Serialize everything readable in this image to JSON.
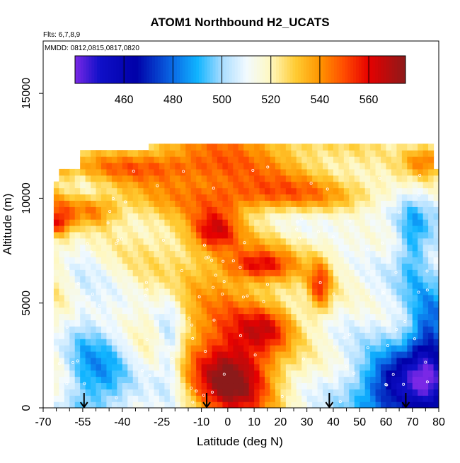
{
  "chart_data": {
    "type": "heatmap",
    "title": "ATOM1 Northbound H2_UCATS",
    "subtitle_lines": [
      "Flts: 6,7,8,9",
      "MMDD: 0812,0815,0817,0820"
    ],
    "xlabel": "Latitude (deg N)",
    "ylabel": "Altitude (m)",
    "xlim": [
      -70,
      80
    ],
    "ylim": [
      0,
      17500
    ],
    "x_ticks": [
      -70,
      -55,
      -40,
      -25,
      -10,
      0,
      10,
      20,
      30,
      40,
      50,
      60,
      70,
      80
    ],
    "x_minor_ticks": [
      -65,
      -60,
      -50,
      -45,
      -35,
      -30,
      -20,
      -15,
      -5,
      5,
      15,
      25,
      35,
      45,
      55,
      65,
      75
    ],
    "y_ticks": [
      0,
      5000,
      10000,
      15000
    ],
    "colorbar": {
      "range": [
        440,
        575
      ],
      "ticks": [
        460,
        480,
        500,
        520,
        540,
        560
      ],
      "stops": [
        {
          "v": 440,
          "color": "#7a28e6"
        },
        {
          "v": 450,
          "color": "#1010c8"
        },
        {
          "v": 465,
          "color": "#0000a8"
        },
        {
          "v": 480,
          "color": "#0a6ae6"
        },
        {
          "v": 490,
          "color": "#10b4ff"
        },
        {
          "v": 500,
          "color": "#a8dcff"
        },
        {
          "v": 510,
          "color": "#f2faff"
        },
        {
          "v": 520,
          "color": "#fff8c0"
        },
        {
          "v": 530,
          "color": "#ffcc33"
        },
        {
          "v": 540,
          "color": "#ff9500"
        },
        {
          "v": 550,
          "color": "#ff4b00"
        },
        {
          "v": 560,
          "color": "#e60000"
        },
        {
          "v": 575,
          "color": "#8c1a1a"
        }
      ]
    },
    "profile_latitudes": [
      -54.5,
      -8,
      38.5,
      67.5
    ],
    "grid": false,
    "legend": "colorbar top",
    "field": {
      "z_range": [
        0,
        12500
      ],
      "base": [
        {
          "lat": -66,
          "value": 512
        },
        {
          "lat": -55,
          "value": 500
        },
        {
          "lat": -40,
          "value": 508
        },
        {
          "lat": -25,
          "value": 514
        },
        {
          "lat": -10,
          "value": 520
        },
        {
          "lat": 0,
          "value": 522
        },
        {
          "lat": 15,
          "value": 518
        },
        {
          "lat": 30,
          "value": 512
        },
        {
          "lat": 45,
          "value": 506
        },
        {
          "lat": 60,
          "value": 500
        },
        {
          "lat": 78,
          "value": 494
        }
      ],
      "features": [
        {
          "lat": 2,
          "alt": 1200,
          "sx": 11,
          "sz": 1300,
          "amp": 50
        },
        {
          "lat": 0,
          "alt": 3600,
          "sx": 15,
          "sz": 1400,
          "amp": 18
        },
        {
          "lat": 15,
          "alt": 3800,
          "sx": 7,
          "sz": 700,
          "amp": 22
        },
        {
          "lat": 12,
          "alt": 6800,
          "sx": 9,
          "sz": 500,
          "amp": 30
        },
        {
          "lat": -5,
          "alt": 8500,
          "sx": 6,
          "sz": 700,
          "amp": 30
        },
        {
          "lat": 35,
          "alt": 5800,
          "sx": 3,
          "sz": 900,
          "amp": 32
        },
        {
          "lat": -22,
          "alt": 3000,
          "sx": 4,
          "sz": 1800,
          "amp": -22
        },
        {
          "lat": -48,
          "alt": 1800,
          "sx": 8,
          "sz": 1600,
          "amp": -18
        },
        {
          "lat": 68,
          "alt": 1000,
          "sx": 12,
          "sz": 1100,
          "amp": -48
        },
        {
          "lat": 76,
          "alt": 3000,
          "sx": 5,
          "sz": 1600,
          "amp": -30
        },
        {
          "lat": 30,
          "alt": 9000,
          "sx": 25,
          "sz": 600,
          "amp": -12
        },
        {
          "lat": 70,
          "alt": 8000,
          "sx": 4,
          "sz": 1500,
          "amp": -20
        },
        {
          "lat": -35,
          "alt": 11500,
          "sx": 25,
          "sz": 500,
          "amp": 20
        },
        {
          "lat": 20,
          "alt": 10200,
          "sx": 30,
          "sz": 600,
          "amp": 18
        },
        {
          "lat": 75,
          "alt": 11800,
          "sx": 6,
          "sz": 600,
          "amp": 30
        },
        {
          "lat": -58,
          "alt": 9600,
          "sx": 10,
          "sz": 500,
          "amp": 22
        },
        {
          "lat": -50,
          "alt": 9200,
          "sx": 6,
          "sz": 500,
          "amp": 15
        },
        {
          "lat": -64,
          "alt": 8800,
          "sx": 3,
          "sz": 350,
          "amp": 25
        }
      ]
    }
  }
}
